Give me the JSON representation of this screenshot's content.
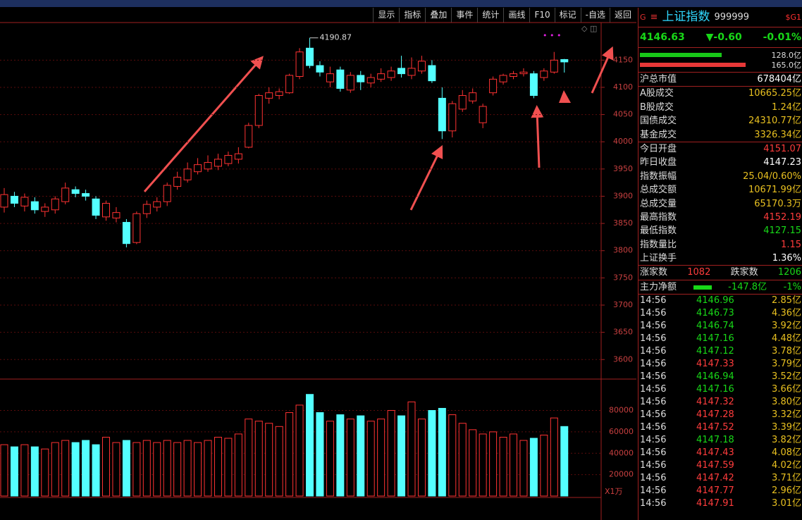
{
  "toolbar": [
    "显示",
    "指标",
    "叠加",
    "事件",
    "统计",
    "画线",
    "F10",
    "标记",
    "-自选",
    "返回"
  ],
  "chart_data": {
    "type": "candlestick",
    "ylim": [
      3568,
      4219
    ],
    "yticks": [
      4150,
      4100,
      4050,
      4000,
      3950,
      3900,
      3850,
      3800,
      3750,
      3700,
      3650,
      3600
    ],
    "vol_ylim": [
      0,
      108000
    ],
    "vol_yticks": [
      80000,
      60000,
      40000,
      20000
    ],
    "vol_unit": "X1万",
    "high_label": "4190.87",
    "ohlc": [
      [
        3880,
        3915,
        3870,
        3903
      ],
      [
        3900,
        3908,
        3880,
        3887
      ],
      [
        3882,
        3905,
        3872,
        3898
      ],
      [
        3890,
        3898,
        3868,
        3875
      ],
      [
        3872,
        3887,
        3862,
        3880
      ],
      [
        3875,
        3900,
        3868,
        3895
      ],
      [
        3890,
        3925,
        3885,
        3915
      ],
      [
        3912,
        3918,
        3898,
        3905
      ],
      [
        3905,
        3912,
        3892,
        3900
      ],
      [
        3895,
        3900,
        3858,
        3865
      ],
      [
        3862,
        3892,
        3855,
        3887
      ],
      [
        3860,
        3880,
        3852,
        3870
      ],
      [
        3852,
        3858,
        3806,
        3813
      ],
      [
        3815,
        3872,
        3812,
        3868
      ],
      [
        3868,
        3892,
        3860,
        3885
      ],
      [
        3880,
        3898,
        3872,
        3890
      ],
      [
        3890,
        3925,
        3882,
        3920
      ],
      [
        3918,
        3945,
        3912,
        3935
      ],
      [
        3930,
        3962,
        3925,
        3950
      ],
      [
        3945,
        3970,
        3940,
        3958
      ],
      [
        3950,
        3975,
        3945,
        3962
      ],
      [
        3955,
        3978,
        3948,
        3968
      ],
      [
        3960,
        3982,
        3955,
        3975
      ],
      [
        3968,
        3990,
        3960,
        3978
      ],
      [
        3990,
        4035,
        3988,
        4030
      ],
      [
        4030,
        4088,
        4025,
        4085
      ],
      [
        4080,
        4100,
        4070,
        4090
      ],
      [
        4085,
        4098,
        4078,
        4092
      ],
      [
        4090,
        4125,
        4088,
        4122
      ],
      [
        4120,
        4172,
        4115,
        4165
      ],
      [
        4172,
        4190.87,
        4135,
        4140
      ],
      [
        4140,
        4148,
        4120,
        4128
      ],
      [
        4110,
        4138,
        4100,
        4125
      ],
      [
        4132,
        4138,
        4092,
        4098
      ],
      [
        4095,
        4128,
        4090,
        4122
      ],
      [
        4122,
        4130,
        4095,
        4110
      ],
      [
        4108,
        4125,
        4100,
        4118
      ],
      [
        4115,
        4135,
        4110,
        4125
      ],
      [
        4118,
        4138,
        4112,
        4130
      ],
      [
        4135,
        4158,
        4118,
        4125
      ],
      [
        4122,
        4155,
        4115,
        4135
      ],
      [
        4130,
        4158,
        4125,
        4148
      ],
      [
        4140,
        4150,
        4108,
        4112
      ],
      [
        4080,
        4100,
        4005,
        4020
      ],
      [
        4020,
        4075,
        4008,
        4070
      ],
      [
        4060,
        4095,
        4055,
        4085
      ],
      [
        4075,
        4098,
        4070,
        4090
      ],
      [
        4035,
        4070,
        4025,
        4065
      ],
      [
        4090,
        4120,
        4085,
        4115
      ],
      [
        4110,
        4125,
        4105,
        4122
      ],
      [
        4120,
        4130,
        4115,
        4125
      ],
      [
        4125,
        4135,
        4120,
        4128
      ],
      [
        4125,
        4130,
        4080,
        4085
      ],
      [
        4118,
        4135,
        4112,
        4130
      ],
      [
        4128,
        4165,
        4125,
        4150
      ],
      [
        4151.07,
        4152.19,
        4127.15,
        4146.63
      ]
    ],
    "volume": [
      48000,
      46000,
      48000,
      46000,
      44000,
      50000,
      52000,
      50000,
      52000,
      48000,
      55000,
      50000,
      52000,
      50000,
      52000,
      50000,
      52000,
      50000,
      52000,
      50000,
      52000,
      55000,
      54000,
      58000,
      72000,
      70000,
      68000,
      65000,
      78000,
      85000,
      95000,
      78000,
      70000,
      76000,
      72000,
      75000,
      70000,
      72000,
      80000,
      75000,
      88000,
      72000,
      80000,
      82000,
      76000,
      68000,
      62000,
      58000,
      60000,
      55000,
      58000,
      52000,
      54000,
      57000,
      73000,
      65000
    ],
    "up_color": "#ff3232",
    "down_color": "#54ffff"
  },
  "panel": {
    "g": "G",
    "menu": "≡",
    "name": "上证指数",
    "code": "999999",
    "tag": "$G1",
    "price": "4146.63",
    "change": "▼-0.60",
    "pct": "-0.01%",
    "flows": [
      {
        "value": 128.0,
        "label": "128.0亿",
        "color": "#18c818"
      },
      {
        "value": 165.0,
        "label": "165.0亿",
        "color": "#e83838"
      }
    ],
    "rows": [
      [
        [
          "沪总市值",
          "678404亿",
          "#ffffff"
        ]
      ],
      [
        [
          "A股成交",
          "10665.25亿",
          "#e8c020"
        ],
        [
          "B股成交",
          "1.24亿",
          "#e8c020"
        ],
        [
          "国债成交",
          "24310.77亿",
          "#e8c020"
        ],
        [
          "基金成交",
          "3326.34亿",
          "#e8c020"
        ]
      ],
      [
        [
          "今日开盘",
          "4151.07",
          "#ff3c3c"
        ],
        [
          "昨日收盘",
          "4147.23",
          "#ffffff"
        ],
        [
          "指数振幅",
          "25.04/0.60%",
          "#e8c020"
        ],
        [
          "总成交额",
          "10671.99亿",
          "#e8c020"
        ],
        [
          "总成交量",
          "65170.3万",
          "#e8c020"
        ],
        [
          "最高指数",
          "4152.19",
          "#ff3c3c"
        ],
        [
          "最低指数",
          "4127.15",
          "#18d818"
        ],
        [
          "指数量比",
          "1.15",
          "#ff3c3c"
        ],
        [
          "上证换手",
          "1.36%",
          "#ffffff"
        ]
      ]
    ],
    "up_label": "涨家数",
    "up_count": "1082",
    "down_label": "跌家数",
    "down_count": "1206",
    "main_label": "主力净额",
    "main_value": "-147.8亿",
    "main_pct": "-1%",
    "ticks": [
      [
        "14:56",
        "4146.96",
        "#18d818",
        "2.85亿"
      ],
      [
        "14:56",
        "4146.73",
        "#18d818",
        "4.36亿"
      ],
      [
        "14:56",
        "4146.74",
        "#18d818",
        "3.92亿"
      ],
      [
        "14:56",
        "4147.16",
        "#18d818",
        "4.48亿"
      ],
      [
        "14:56",
        "4147.12",
        "#18d818",
        "3.78亿"
      ],
      [
        "14:56",
        "4147.33",
        "#ff3c3c",
        "3.79亿"
      ],
      [
        "14:56",
        "4146.94",
        "#18d818",
        "3.52亿"
      ],
      [
        "14:56",
        "4147.16",
        "#18d818",
        "3.66亿"
      ],
      [
        "14:56",
        "4147.32",
        "#ff3c3c",
        "3.80亿"
      ],
      [
        "14:56",
        "4147.28",
        "#ff3c3c",
        "3.32亿"
      ],
      [
        "14:56",
        "4147.52",
        "#ff3c3c",
        "3.39亿"
      ],
      [
        "14:56",
        "4147.18",
        "#18d818",
        "3.82亿"
      ],
      [
        "14:56",
        "4147.43",
        "#ff3c3c",
        "4.08亿"
      ],
      [
        "14:56",
        "4147.59",
        "#ff3c3c",
        "4.02亿"
      ],
      [
        "14:56",
        "4147.42",
        "#ff3c3c",
        "3.71亿"
      ],
      [
        "14:56",
        "4147.77",
        "#ff3c3c",
        "2.96亿"
      ],
      [
        "14:56",
        "4147.91",
        "#ff3c3c",
        "3.01亿"
      ]
    ]
  }
}
